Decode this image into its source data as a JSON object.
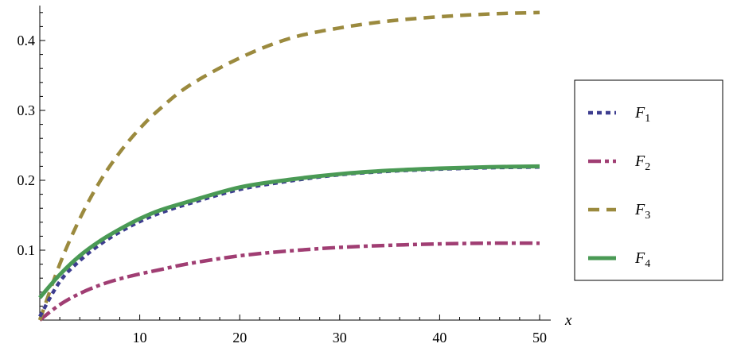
{
  "chart_data": {
    "type": "line",
    "xlabel": "x",
    "ylabel": "",
    "xlim": [
      0,
      50
    ],
    "ylim": [
      0,
      0.45
    ],
    "x_ticks": [
      10,
      20,
      30,
      40,
      50
    ],
    "x_tick_labels": [
      "10",
      "20",
      "30",
      "40",
      "50"
    ],
    "y_ticks": [
      0.1,
      0.2,
      0.3,
      0.4
    ],
    "y_tick_labels": [
      "0.1",
      "0.2",
      "0.3",
      "0.4"
    ],
    "grid": false,
    "legend_position": "right",
    "x": [
      0,
      2,
      4,
      6,
      8,
      10,
      12,
      15,
      20,
      25,
      30,
      35,
      40,
      45,
      50
    ],
    "series": [
      {
        "name": "F1",
        "label_main": "F",
        "label_sub": "1",
        "color": "#3d3d8f",
        "dash": "dotted",
        "values": [
          0.005,
          0.055,
          0.085,
          0.108,
          0.126,
          0.141,
          0.153,
          0.167,
          0.187,
          0.199,
          0.208,
          0.213,
          0.216,
          0.218,
          0.219
        ]
      },
      {
        "name": "F2",
        "label_main": "F",
        "label_sub": "2",
        "color": "#a03e73",
        "dash": "dash-dot",
        "values": [
          0.0,
          0.022,
          0.038,
          0.05,
          0.059,
          0.066,
          0.072,
          0.081,
          0.092,
          0.099,
          0.104,
          0.107,
          0.109,
          0.11,
          0.11
        ]
      },
      {
        "name": "F3",
        "label_main": "F",
        "label_sub": "3",
        "color": "#9b8a3e",
        "dash": "dashed",
        "values": [
          0.0,
          0.08,
          0.145,
          0.198,
          0.24,
          0.274,
          0.302,
          0.336,
          0.375,
          0.403,
          0.418,
          0.428,
          0.434,
          0.438,
          0.44
        ]
      },
      {
        "name": "F4",
        "label_main": "F",
        "label_sub": "4",
        "color": "#4a9a55",
        "dash": "solid",
        "values": [
          0.032,
          0.065,
          0.092,
          0.113,
          0.13,
          0.145,
          0.157,
          0.17,
          0.19,
          0.201,
          0.209,
          0.214,
          0.217,
          0.219,
          0.22
        ]
      }
    ]
  }
}
